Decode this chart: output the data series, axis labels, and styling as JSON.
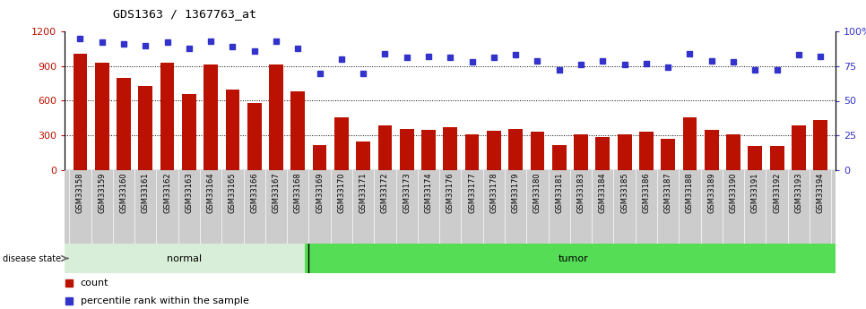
{
  "title": "GDS1363 / 1367763_at",
  "samples": [
    "GSM33158",
    "GSM33159",
    "GSM33160",
    "GSM33161",
    "GSM33162",
    "GSM33163",
    "GSM33164",
    "GSM33165",
    "GSM33166",
    "GSM33167",
    "GSM33168",
    "GSM33169",
    "GSM33170",
    "GSM33171",
    "GSM33172",
    "GSM33173",
    "GSM33174",
    "GSM33176",
    "GSM33177",
    "GSM33178",
    "GSM33179",
    "GSM33180",
    "GSM33181",
    "GSM33183",
    "GSM33184",
    "GSM33185",
    "GSM33186",
    "GSM33187",
    "GSM33188",
    "GSM33189",
    "GSM33190",
    "GSM33191",
    "GSM33192",
    "GSM33193",
    "GSM33194"
  ],
  "counts": [
    1010,
    930,
    800,
    730,
    930,
    660,
    910,
    700,
    580,
    910,
    680,
    220,
    460,
    250,
    390,
    360,
    350,
    370,
    310,
    340,
    360,
    330,
    220,
    310,
    290,
    310,
    330,
    270,
    460,
    350,
    310,
    210,
    210,
    390,
    430
  ],
  "percentiles": [
    95,
    92,
    91,
    90,
    92,
    88,
    93,
    89,
    86,
    93,
    88,
    70,
    80,
    70,
    84,
    81,
    82,
    81,
    78,
    81,
    83,
    79,
    72,
    76,
    79,
    76,
    77,
    74,
    84,
    79,
    78,
    72,
    72,
    83,
    82
  ],
  "group": [
    "normal",
    "normal",
    "normal",
    "normal",
    "normal",
    "normal",
    "normal",
    "normal",
    "normal",
    "normal",
    "normal",
    "tumor",
    "tumor",
    "tumor",
    "tumor",
    "tumor",
    "tumor",
    "tumor",
    "tumor",
    "tumor",
    "tumor",
    "tumor",
    "tumor",
    "tumor",
    "tumor",
    "tumor",
    "tumor",
    "tumor",
    "tumor",
    "tumor",
    "tumor",
    "tumor",
    "tumor",
    "tumor",
    "tumor"
  ],
  "bar_color": "#bb1100",
  "dot_color": "#3333cc",
  "normal_bg": "#d8eed8",
  "tumor_bg": "#55dd55",
  "label_bg": "#cccccc",
  "ylim_left": [
    0,
    1200
  ],
  "ylim_right": [
    0,
    100
  ],
  "yticks_left": [
    0,
    300,
    600,
    900,
    1200
  ],
  "yticks_right": [
    0,
    25,
    50,
    75,
    100
  ],
  "ytick_labels_left": [
    "0",
    "300",
    "600",
    "900",
    "1200"
  ],
  "ytick_labels_right": [
    "0",
    "25",
    "50",
    "75",
    "100%"
  ]
}
